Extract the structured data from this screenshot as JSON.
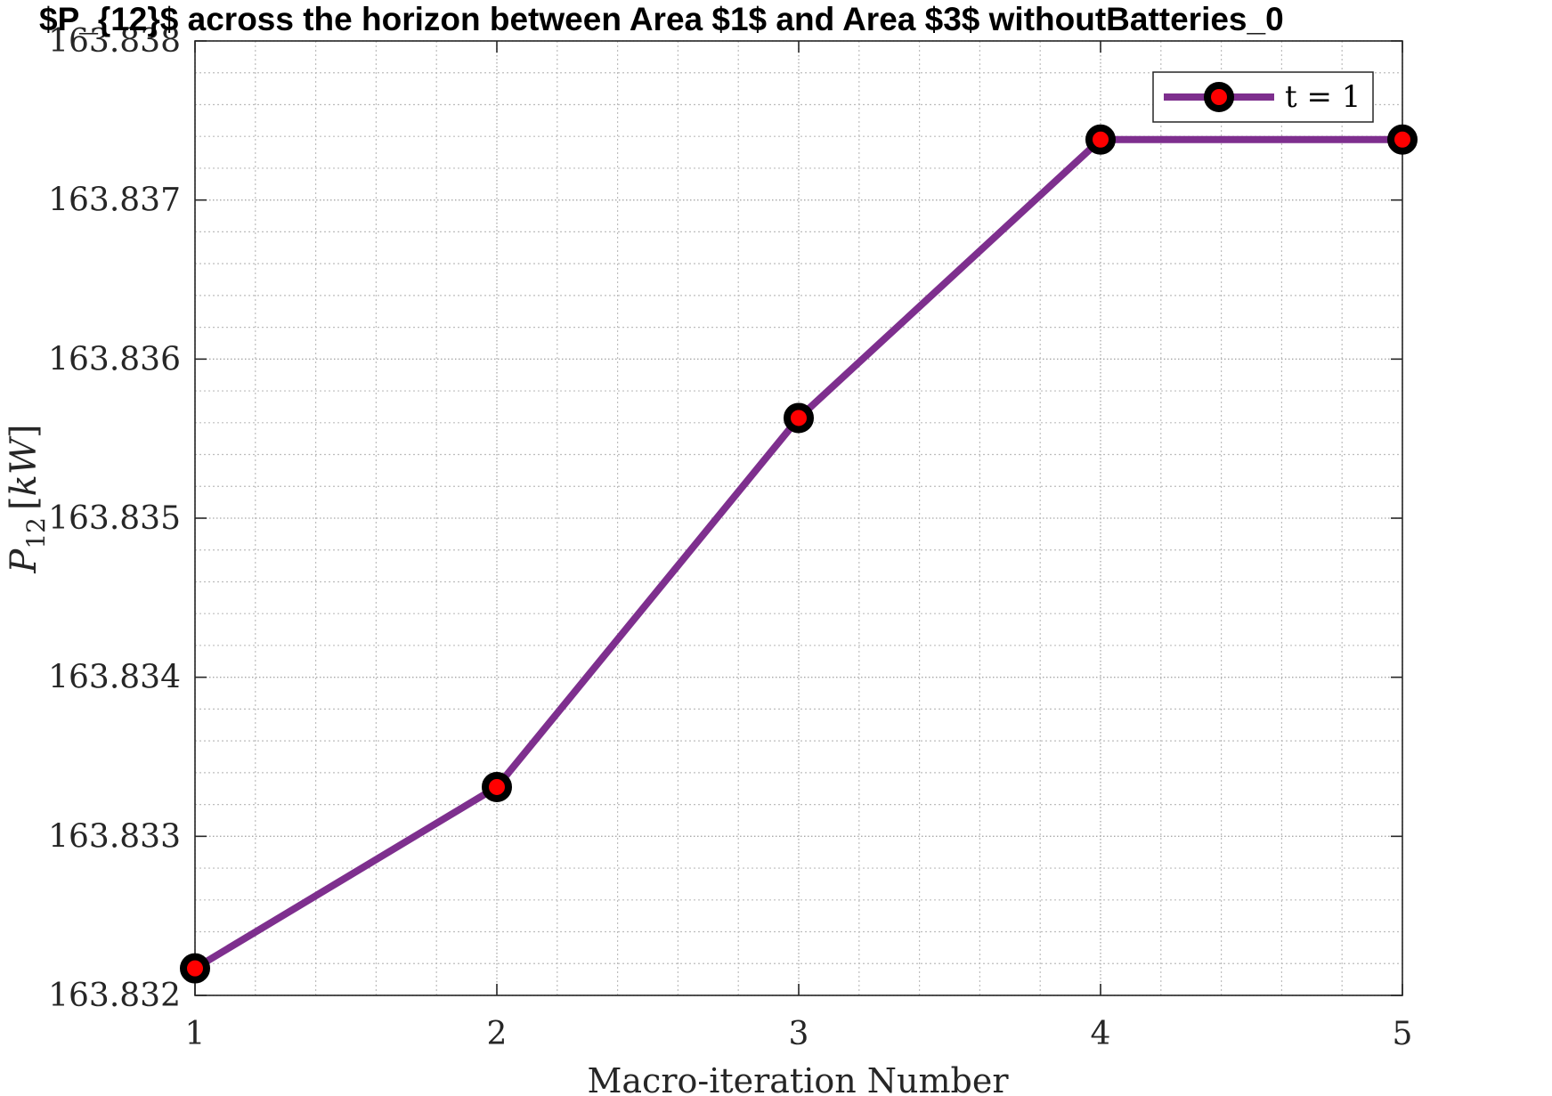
{
  "chart_data": {
    "type": "line",
    "title": "$P_{12}$ across the horizon between Area $1$ and Area $3$ withoutBatteries_0",
    "xlabel": "Macro-iteration Number",
    "ylabel": {
      "symbol": "P",
      "subscript": "12",
      "unit_open": "[",
      "unit": "kW",
      "unit_close": "]"
    },
    "x": [
      1,
      2,
      3,
      4,
      5
    ],
    "xlim": [
      1,
      5
    ],
    "ylim": [
      163.832,
      163.838
    ],
    "xticks": [
      "1",
      "2",
      "3",
      "4",
      "5"
    ],
    "yticks": [
      "163.832",
      "163.833",
      "163.834",
      "163.835",
      "163.836",
      "163.837",
      "163.838"
    ],
    "yticks_values": [
      163.832,
      163.833,
      163.834,
      163.835,
      163.836,
      163.837,
      163.838
    ],
    "grid": true,
    "minor_grid": true,
    "legend_position": "top-right",
    "series": [
      {
        "name": "t = 1",
        "values": [
          163.83217,
          163.83331,
          163.83563,
          163.83738,
          163.83738
        ],
        "color": "#7E2F8E",
        "marker_edge": "#000000",
        "marker_face": "#FF0000"
      }
    ]
  }
}
